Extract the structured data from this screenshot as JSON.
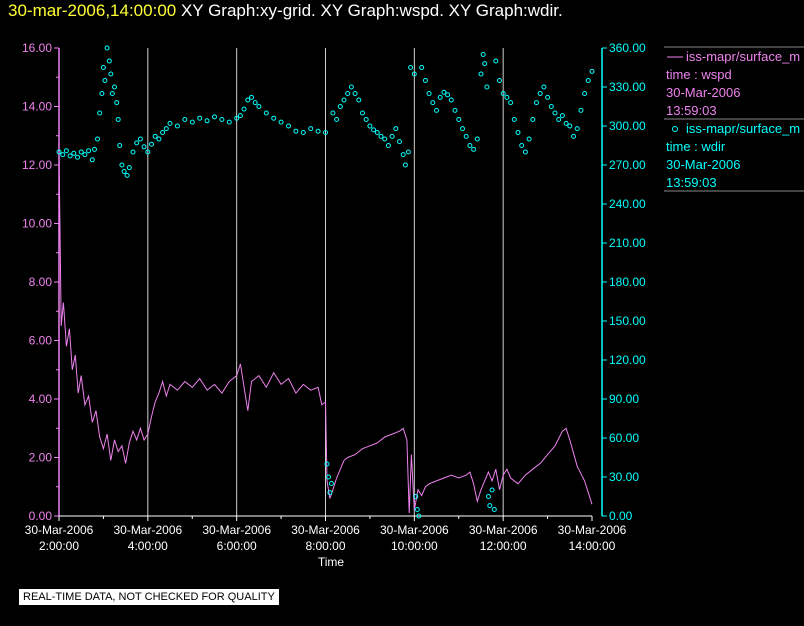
{
  "header": {
    "timestamp": "30-mar-2006,14:00:00",
    "graphs": "XY Graph:xy-grid.  XY Graph:wspd.  XY Graph:wdir."
  },
  "colors": {
    "wspd": "#ee82ee",
    "wdir": "#00ffff",
    "grid": "#d0d0d0",
    "axis_text": "#ffffff",
    "header_time": "#ffff33"
  },
  "chart_data": {
    "type": "line",
    "xlabel": "Time",
    "x_ticks": [
      {
        "date": "30-Mar-2006",
        "time": "2:00:00"
      },
      {
        "date": "30-Mar-2006",
        "time": "4:00:00"
      },
      {
        "date": "30-Mar-2006",
        "time": "6:00:00"
      },
      {
        "date": "30-Mar-2006",
        "time": "8:00:00"
      },
      {
        "date": "30-Mar-2006",
        "time": "10:00:00"
      },
      {
        "date": "30-Mar-2006",
        "time": "12:00:00"
      },
      {
        "date": "30-Mar-2006",
        "time": "14:00:00"
      }
    ],
    "xlim": [
      "2006-03-30T02:00:00",
      "2006-03-30T14:00:00"
    ],
    "grid": "vertical",
    "y_left": {
      "ylim": [
        0,
        16
      ],
      "ticks": [
        "0.00",
        "2.00",
        "4.00",
        "6.00",
        "8.00",
        "10.00",
        "12.00",
        "14.00",
        "16.00"
      ]
    },
    "y_right": {
      "ylim": [
        0,
        360
      ],
      "ticks": [
        "0.00",
        "30.00",
        "60.00",
        "90.00",
        "120.00",
        "150.00",
        "180.00",
        "210.00",
        "240.00",
        "270.00",
        "300.00",
        "330.00",
        "360.00"
      ]
    },
    "series": [
      {
        "key": "wspd",
        "axis": "left",
        "style": "line",
        "points": [
          [
            "02:00",
            12.5
          ],
          [
            "02:03",
            6.5
          ],
          [
            "02:06",
            7.3
          ],
          [
            "02:10",
            5.8
          ],
          [
            "02:14",
            6.4
          ],
          [
            "02:18",
            5.0
          ],
          [
            "02:22",
            5.5
          ],
          [
            "02:26",
            4.2
          ],
          [
            "02:30",
            4.8
          ],
          [
            "02:35",
            3.8
          ],
          [
            "02:40",
            4.1
          ],
          [
            "02:45",
            3.2
          ],
          [
            "02:50",
            3.6
          ],
          [
            "02:55",
            2.7
          ],
          [
            "03:00",
            2.3
          ],
          [
            "03:05",
            2.8
          ],
          [
            "03:10",
            1.9
          ],
          [
            "03:15",
            2.6
          ],
          [
            "03:20",
            2.2
          ],
          [
            "03:25",
            2.4
          ],
          [
            "03:30",
            1.8
          ],
          [
            "03:35",
            2.5
          ],
          [
            "03:40",
            2.9
          ],
          [
            "03:45",
            2.6
          ],
          [
            "03:50",
            3.0
          ],
          [
            "03:55",
            2.6
          ],
          [
            "04:00",
            2.8
          ],
          [
            "04:05",
            3.4
          ],
          [
            "04:10",
            3.9
          ],
          [
            "04:15",
            4.2
          ],
          [
            "04:20",
            4.6
          ],
          [
            "04:25",
            4.1
          ],
          [
            "04:30",
            4.5
          ],
          [
            "04:40",
            4.3
          ],
          [
            "04:50",
            4.6
          ],
          [
            "05:00",
            4.4
          ],
          [
            "05:10",
            4.7
          ],
          [
            "05:20",
            4.3
          ],
          [
            "05:30",
            4.5
          ],
          [
            "05:40",
            4.2
          ],
          [
            "05:50",
            4.6
          ],
          [
            "06:00",
            4.8
          ],
          [
            "06:05",
            5.2
          ],
          [
            "06:10",
            4.4
          ],
          [
            "06:15",
            3.6
          ],
          [
            "06:20",
            4.6
          ],
          [
            "06:30",
            4.8
          ],
          [
            "06:40",
            4.4
          ],
          [
            "06:50",
            4.9
          ],
          [
            "07:00",
            4.5
          ],
          [
            "07:10",
            4.7
          ],
          [
            "07:20",
            4.2
          ],
          [
            "07:30",
            4.5
          ],
          [
            "07:40",
            4.3
          ],
          [
            "07:50",
            4.4
          ],
          [
            "07:55",
            3.8
          ],
          [
            "08:00",
            3.9
          ],
          [
            "08:02",
            1.2
          ],
          [
            "08:06",
            0.6
          ],
          [
            "08:10",
            0.9
          ],
          [
            "08:15",
            1.3
          ],
          [
            "08:20",
            1.6
          ],
          [
            "08:25",
            1.9
          ],
          [
            "08:30",
            2.0
          ],
          [
            "08:40",
            2.1
          ],
          [
            "08:50",
            2.3
          ],
          [
            "09:00",
            2.4
          ],
          [
            "09:10",
            2.5
          ],
          [
            "09:20",
            2.7
          ],
          [
            "09:30",
            2.8
          ],
          [
            "09:40",
            2.9
          ],
          [
            "09:45",
            3.0
          ],
          [
            "09:50",
            2.6
          ],
          [
            "09:53",
            0.1
          ],
          [
            "09:56",
            2.1
          ],
          [
            "10:00",
            0.2
          ],
          [
            "10:05",
            0.9
          ],
          [
            "10:10",
            0.7
          ],
          [
            "10:15",
            1.0
          ],
          [
            "10:20",
            1.1
          ],
          [
            "10:30",
            1.2
          ],
          [
            "10:40",
            1.3
          ],
          [
            "10:50",
            1.4
          ],
          [
            "11:00",
            1.3
          ],
          [
            "11:10",
            1.4
          ],
          [
            "11:15",
            1.5
          ],
          [
            "11:20",
            1.1
          ],
          [
            "11:25",
            0.5
          ],
          [
            "11:30",
            0.9
          ],
          [
            "11:35",
            1.2
          ],
          [
            "11:40",
            1.5
          ],
          [
            "11:45",
            1.2
          ],
          [
            "11:50",
            1.6
          ],
          [
            "11:55",
            0.9
          ],
          [
            "12:00",
            1.4
          ],
          [
            "12:05",
            1.6
          ],
          [
            "12:10",
            1.3
          ],
          [
            "12:20",
            1.1
          ],
          [
            "12:30",
            1.4
          ],
          [
            "12:40",
            1.6
          ],
          [
            "12:50",
            1.8
          ],
          [
            "13:00",
            2.1
          ],
          [
            "13:10",
            2.4
          ],
          [
            "13:20",
            2.9
          ],
          [
            "13:25",
            3.0
          ],
          [
            "13:30",
            2.6
          ],
          [
            "13:40",
            1.7
          ],
          [
            "13:50",
            1.2
          ],
          [
            "14:00",
            0.4
          ]
        ]
      },
      {
        "key": "wdir",
        "axis": "right",
        "style": "markers",
        "points": [
          [
            "02:00",
            280
          ],
          [
            "02:05",
            278
          ],
          [
            "02:10",
            281
          ],
          [
            "02:15",
            277
          ],
          [
            "02:20",
            279
          ],
          [
            "02:25",
            276
          ],
          [
            "02:30",
            280
          ],
          [
            "02:35",
            278
          ],
          [
            "02:40",
            281
          ],
          [
            "02:45",
            274
          ],
          [
            "02:48",
            282
          ],
          [
            "02:52",
            290
          ],
          [
            "02:55",
            310
          ],
          [
            "02:58",
            325
          ],
          [
            "03:00",
            345
          ],
          [
            "03:02",
            335
          ],
          [
            "03:05",
            360
          ],
          [
            "03:08",
            350
          ],
          [
            "03:10",
            340
          ],
          [
            "03:12",
            325
          ],
          [
            "03:15",
            330
          ],
          [
            "03:18",
            318
          ],
          [
            "03:20",
            305
          ],
          [
            "03:22",
            285
          ],
          [
            "03:25",
            270
          ],
          [
            "03:28",
            265
          ],
          [
            "03:32",
            262
          ],
          [
            "03:35",
            268
          ],
          [
            "03:40",
            280
          ],
          [
            "03:45",
            287
          ],
          [
            "03:50",
            290
          ],
          [
            "03:55",
            284
          ],
          [
            "04:00",
            280
          ],
          [
            "04:05",
            286
          ],
          [
            "04:10",
            292
          ],
          [
            "04:15",
            290
          ],
          [
            "04:20",
            295
          ],
          [
            "04:25",
            298
          ],
          [
            "04:30",
            302
          ],
          [
            "04:40",
            300
          ],
          [
            "04:50",
            305
          ],
          [
            "05:00",
            303
          ],
          [
            "05:10",
            306
          ],
          [
            "05:20",
            304
          ],
          [
            "05:30",
            307
          ],
          [
            "05:40",
            305
          ],
          [
            "05:50",
            303
          ],
          [
            "06:00",
            306
          ],
          [
            "06:05",
            308
          ],
          [
            "06:10",
            313
          ],
          [
            "06:15",
            320
          ],
          [
            "06:20",
            322
          ],
          [
            "06:25",
            318
          ],
          [
            "06:30",
            315
          ],
          [
            "06:40",
            310
          ],
          [
            "06:50",
            306
          ],
          [
            "07:00",
            303
          ],
          [
            "07:10",
            300
          ],
          [
            "07:20",
            296
          ],
          [
            "07:30",
            295
          ],
          [
            "07:40",
            298
          ],
          [
            "07:50",
            296
          ],
          [
            "08:00",
            295
          ],
          [
            "08:02",
            40
          ],
          [
            "08:04",
            30
          ],
          [
            "08:06",
            18
          ],
          [
            "08:08",
            25
          ],
          [
            "08:10",
            310
          ],
          [
            "08:15",
            305
          ],
          [
            "08:20",
            315
          ],
          [
            "08:25",
            320
          ],
          [
            "08:30",
            325
          ],
          [
            "08:35",
            330
          ],
          [
            "08:40",
            325
          ],
          [
            "08:45",
            320
          ],
          [
            "08:50",
            310
          ],
          [
            "08:55",
            305
          ],
          [
            "09:00",
            300
          ],
          [
            "09:05",
            297
          ],
          [
            "09:10",
            295
          ],
          [
            "09:15",
            292
          ],
          [
            "09:20",
            290
          ],
          [
            "09:25",
            285
          ],
          [
            "09:30",
            292
          ],
          [
            "09:35",
            298
          ],
          [
            "09:40",
            288
          ],
          [
            "09:45",
            278
          ],
          [
            "09:48",
            270
          ],
          [
            "09:52",
            280
          ],
          [
            "09:55",
            345
          ],
          [
            "10:00",
            340
          ],
          [
            "10:02",
            15
          ],
          [
            "10:04",
            5
          ],
          [
            "10:06",
            0
          ],
          [
            "10:10",
            345
          ],
          [
            "10:15",
            335
          ],
          [
            "10:20",
            325
          ],
          [
            "10:25",
            318
          ],
          [
            "10:30",
            312
          ],
          [
            "10:35",
            322
          ],
          [
            "10:40",
            326
          ],
          [
            "10:45",
            324
          ],
          [
            "10:50",
            320
          ],
          [
            "10:55",
            312
          ],
          [
            "11:00",
            305
          ],
          [
            "11:05",
            298
          ],
          [
            "11:10",
            292
          ],
          [
            "11:15",
            285
          ],
          [
            "11:20",
            282
          ],
          [
            "11:25",
            290
          ],
          [
            "11:30",
            340
          ],
          [
            "11:33",
            355
          ],
          [
            "11:35",
            348
          ],
          [
            "11:38",
            330
          ],
          [
            "11:40",
            15
          ],
          [
            "11:42",
            8
          ],
          [
            "11:45",
            20
          ],
          [
            "11:48",
            5
          ],
          [
            "11:50",
            350
          ],
          [
            "11:55",
            335
          ],
          [
            "12:00",
            325
          ],
          [
            "12:05",
            322
          ],
          [
            "12:10",
            318
          ],
          [
            "12:15",
            305
          ],
          [
            "12:20",
            295
          ],
          [
            "12:25",
            285
          ],
          [
            "12:30",
            280
          ],
          [
            "12:35",
            290
          ],
          [
            "12:40",
            305
          ],
          [
            "12:45",
            318
          ],
          [
            "12:50",
            325
          ],
          [
            "12:55",
            330
          ],
          [
            "13:00",
            322
          ],
          [
            "13:05",
            315
          ],
          [
            "13:10",
            310
          ],
          [
            "13:15",
            305
          ],
          [
            "13:20",
            308
          ],
          [
            "13:25",
            302
          ],
          [
            "13:30",
            300
          ],
          [
            "13:35",
            292
          ],
          [
            "13:40",
            298
          ],
          [
            "13:45",
            312
          ],
          [
            "13:50",
            325
          ],
          [
            "13:55",
            335
          ],
          [
            "14:00",
            342
          ]
        ]
      }
    ],
    "legend": {
      "placement": "right",
      "entries": [
        {
          "label": "iss-mapr/surface_m",
          "line2": "time : wspd",
          "line3": "30-Mar-2006",
          "line4": "13:59:03"
        },
        {
          "label": "iss-mapr/surface_m",
          "line2": "time : wdir",
          "line3": "30-Mar-2006",
          "line4": "13:59:03"
        }
      ]
    }
  },
  "disclaimer": "REAL-TIME DATA, NOT CHECKED FOR QUALITY"
}
